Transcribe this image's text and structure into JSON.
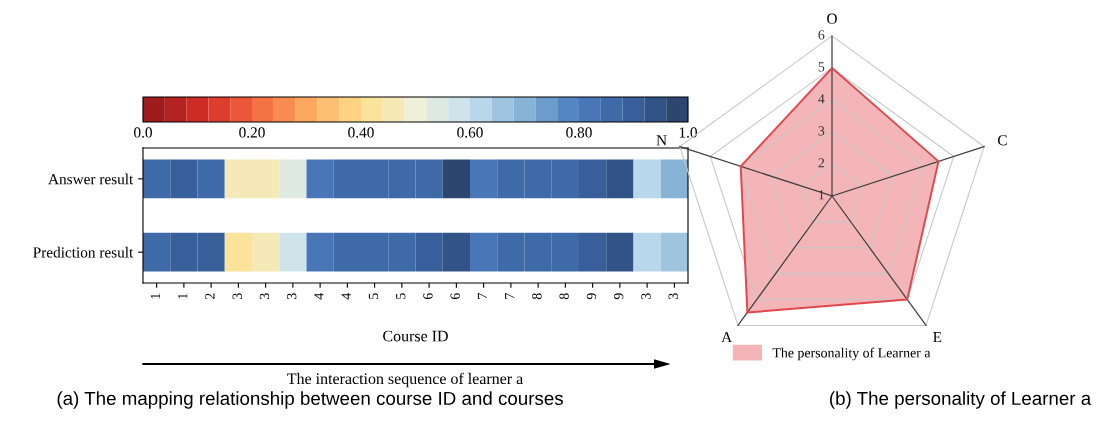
{
  "chart_data": [
    {
      "type": "heatmap",
      "title": "(a) The mapping relationship between course ID and courses",
      "xlabel": "Course ID",
      "annotations": [
        "The interaction sequence of learner a"
      ],
      "categories": [
        "1",
        "1",
        "2",
        "3",
        "3",
        "3",
        "4",
        "4",
        "5",
        "5",
        "6",
        "6",
        "7",
        "7",
        "8",
        "8",
        "9",
        "9",
        "3",
        "3"
      ],
      "y_categories": [
        "Answer result",
        "Prediction result"
      ],
      "cells": [
        [
          0.84,
          0.9,
          0.86,
          0.44,
          0.44,
          0.52,
          0.8,
          0.86,
          0.84,
          0.87,
          0.87,
          0.96,
          0.8,
          0.87,
          0.87,
          0.87,
          0.9,
          0.94,
          0.6,
          0.68
        ],
        [
          0.84,
          0.9,
          0.88,
          0.42,
          0.47,
          0.56,
          0.8,
          0.86,
          0.84,
          0.86,
          0.88,
          0.95,
          0.8,
          0.87,
          0.87,
          0.87,
          0.9,
          0.94,
          0.6,
          0.64
        ]
      ],
      "clim": [
        0,
        1
      ],
      "cticks": [
        {
          "value": 0,
          "label": "0.0"
        },
        {
          "value": 0.2,
          "label": "0.20"
        },
        {
          "value": 0.4,
          "label": "0.40"
        },
        {
          "value": 0.6,
          "label": "0.60"
        },
        {
          "value": 0.8,
          "label": "0.80"
        },
        {
          "value": 1,
          "label": "1.0"
        }
      ]
    },
    {
      "type": "radar",
      "title": "(b) The personality of Learner a",
      "categories": [
        "O",
        "C",
        "E",
        "A",
        "N"
      ],
      "series": [
        {
          "name": "The personality of Learner a",
          "color": "#e0474c",
          "values": [
            5,
            4.5,
            5,
            5.5,
            4
          ]
        }
      ],
      "ylim": [
        1,
        6
      ],
      "yticks": [
        1,
        2,
        3,
        4,
        5,
        6
      ],
      "grid": true,
      "legend": "bottom"
    }
  ]
}
